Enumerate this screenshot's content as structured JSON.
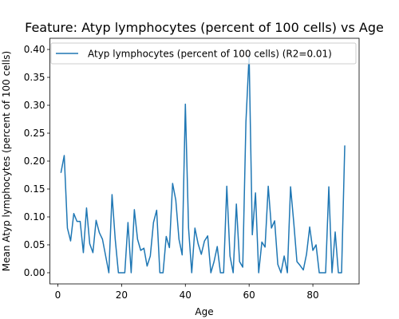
{
  "chart_data": {
    "type": "line",
    "title": "Feature: Atyp lymphocytes (percent of 100 cells) vs Age",
    "xlabel": "Age",
    "ylabel": "Mean Atyp lymphocytes (percent of 100 cells)",
    "xlim": [
      -2.5,
      94.5
    ],
    "ylim": [
      -0.02,
      0.42
    ],
    "xticks": [
      0,
      20,
      40,
      60,
      80
    ],
    "yticks": [
      0.0,
      0.05,
      0.1,
      0.15,
      0.2,
      0.25,
      0.3,
      0.35,
      0.4
    ],
    "ytick_labels": [
      "0.00",
      "0.05",
      "0.10",
      "0.15",
      "0.20",
      "0.25",
      "0.30",
      "0.35",
      "0.40"
    ],
    "grid": false,
    "legend_position": "upper-right",
    "color": "#1f77b4",
    "series": [
      {
        "name": "Atyp lymphocytes (percent of 100 cells) (R2=0.01)",
        "x": [
          1,
          2,
          3,
          4,
          5,
          6,
          7,
          8,
          9,
          10,
          11,
          12,
          13,
          14,
          15,
          16,
          17,
          18,
          19,
          20,
          21,
          22,
          23,
          24,
          25,
          26,
          27,
          28,
          29,
          30,
          31,
          32,
          33,
          34,
          35,
          36,
          37,
          38,
          39,
          40,
          41,
          42,
          43,
          44,
          45,
          46,
          47,
          48,
          49,
          50,
          51,
          52,
          53,
          54,
          55,
          56,
          57,
          58,
          59,
          60,
          61,
          62,
          63,
          64,
          65,
          66,
          67,
          68,
          69,
          70,
          71,
          72,
          73,
          74,
          75,
          76,
          77,
          78,
          79,
          80,
          81,
          82,
          83,
          84,
          85,
          86,
          87,
          88,
          89,
          90
        ],
        "values": [
          0.18,
          0.21,
          0.08,
          0.057,
          0.106,
          0.092,
          0.092,
          0.036,
          0.116,
          0.052,
          0.036,
          0.094,
          0.072,
          0.06,
          0.03,
          0.0,
          0.14,
          0.06,
          0.0,
          0.0,
          0.0,
          0.09,
          0.0,
          0.113,
          0.06,
          0.04,
          0.044,
          0.012,
          0.03,
          0.09,
          0.112,
          0.0,
          0.0,
          0.065,
          0.045,
          0.16,
          0.13,
          0.06,
          0.032,
          0.302,
          0.08,
          0.0,
          0.08,
          0.052,
          0.033,
          0.057,
          0.066,
          0.0,
          0.02,
          0.047,
          0.0,
          0.0,
          0.155,
          0.03,
          0.0,
          0.123,
          0.02,
          0.01,
          0.27,
          0.39,
          0.068,
          0.143,
          0.0,
          0.055,
          0.046,
          0.155,
          0.08,
          0.093,
          0.015,
          0.0,
          0.03,
          0.0,
          0.154,
          0.09,
          0.02,
          0.013,
          0.005,
          0.033,
          0.082,
          0.04,
          0.05,
          0.0,
          0.0,
          0.0,
          0.154,
          0.0,
          0.073,
          0.0,
          0.0,
          0.227
        ]
      }
    ]
  }
}
